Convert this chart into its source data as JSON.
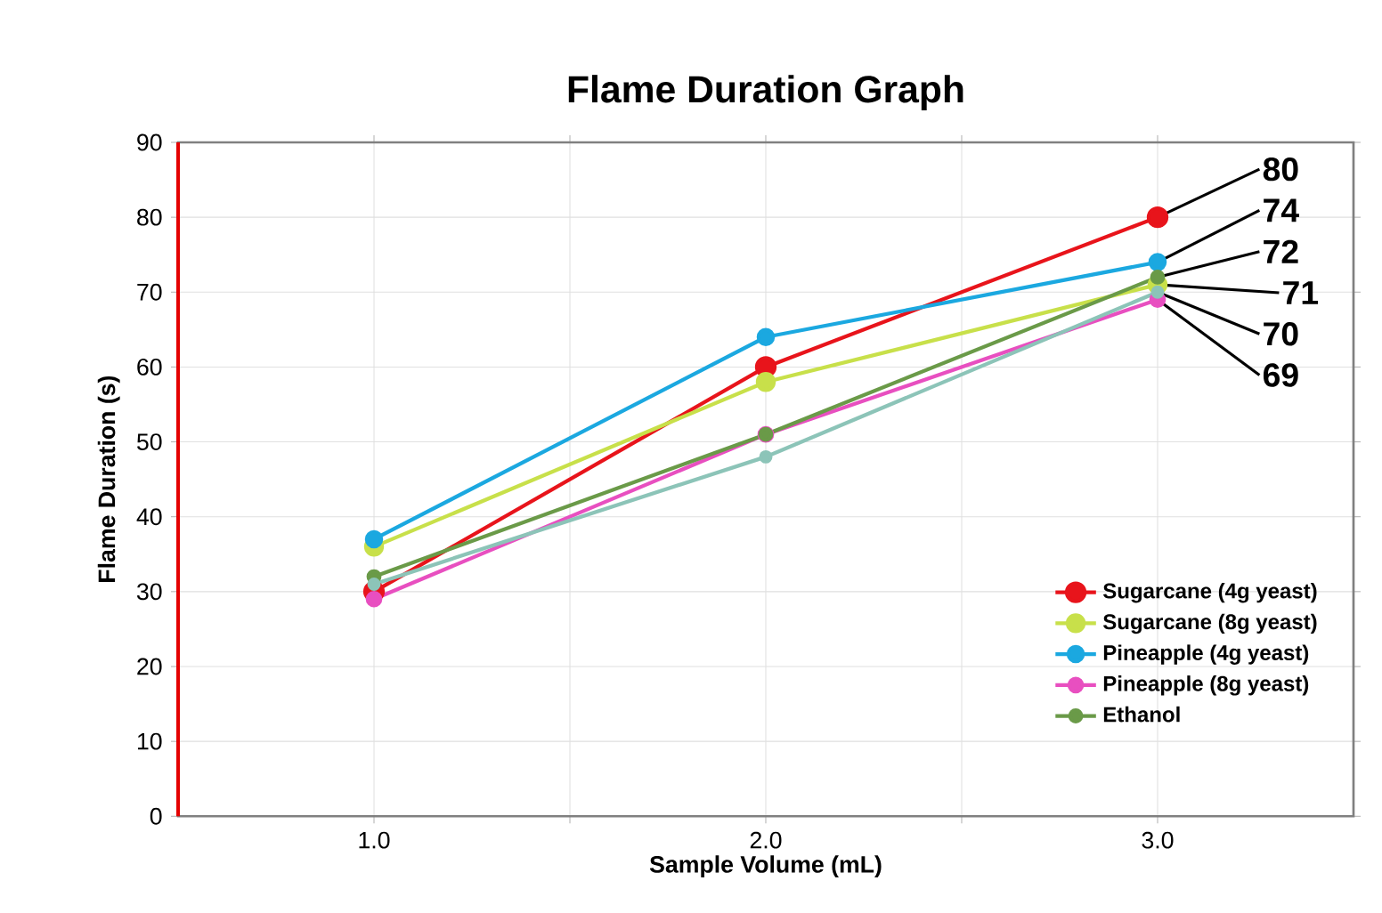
{
  "chart_data": {
    "type": "line",
    "title": "Flame Duration Graph",
    "xlabel": "Sample Volume (mL)",
    "ylabel": "Flame Duration (s)",
    "x": [
      1,
      2,
      3
    ],
    "xlim": [
      0.5,
      3.5
    ],
    "ylim": [
      0,
      90
    ],
    "xticks": [
      {
        "value": 1,
        "label": "1.0"
      },
      {
        "value": 1.5,
        "label": null
      },
      {
        "value": 2,
        "label": "2.0"
      },
      {
        "value": 2.5,
        "label": null
      },
      {
        "value": 3,
        "label": "3.0"
      }
    ],
    "yticks": [
      0,
      10,
      20,
      30,
      40,
      50,
      60,
      70,
      80,
      90
    ],
    "grid": true,
    "legend": "bottom right",
    "marker": "circle",
    "line_style": "solid",
    "series": [
      {
        "name": "Sugarcane (4g yeast)",
        "color": "#e8141b",
        "values": [
          30,
          60,
          80
        ],
        "value_labels": [
          null,
          null,
          "80"
        ]
      },
      {
        "name": "Sugarcane (8g yeast)",
        "color": "#c8e04a",
        "values": [
          36,
          58,
          71
        ],
        "value_labels": [
          null,
          null,
          "71"
        ]
      },
      {
        "name": "Pineapple (4g yeast)",
        "color": "#1ba8e0",
        "values": [
          37,
          64,
          74
        ],
        "value_labels": [
          null,
          null,
          "74"
        ]
      },
      {
        "name": "Pineapple (8g yeast)",
        "color": "#e84fc0",
        "values": [
          29,
          51,
          69
        ],
        "value_labels": [
          null,
          null,
          "69"
        ]
      },
      {
        "name": "Ethanol",
        "color": "#6a9a48",
        "values": [
          32,
          51,
          72
        ],
        "value_labels": [
          null,
          null,
          "72"
        ]
      },
      {
        "color": "#8cc4b8",
        "values": [
          31,
          48,
          70
        ],
        "value_labels": [
          null,
          null,
          "70"
        ]
      }
    ]
  }
}
